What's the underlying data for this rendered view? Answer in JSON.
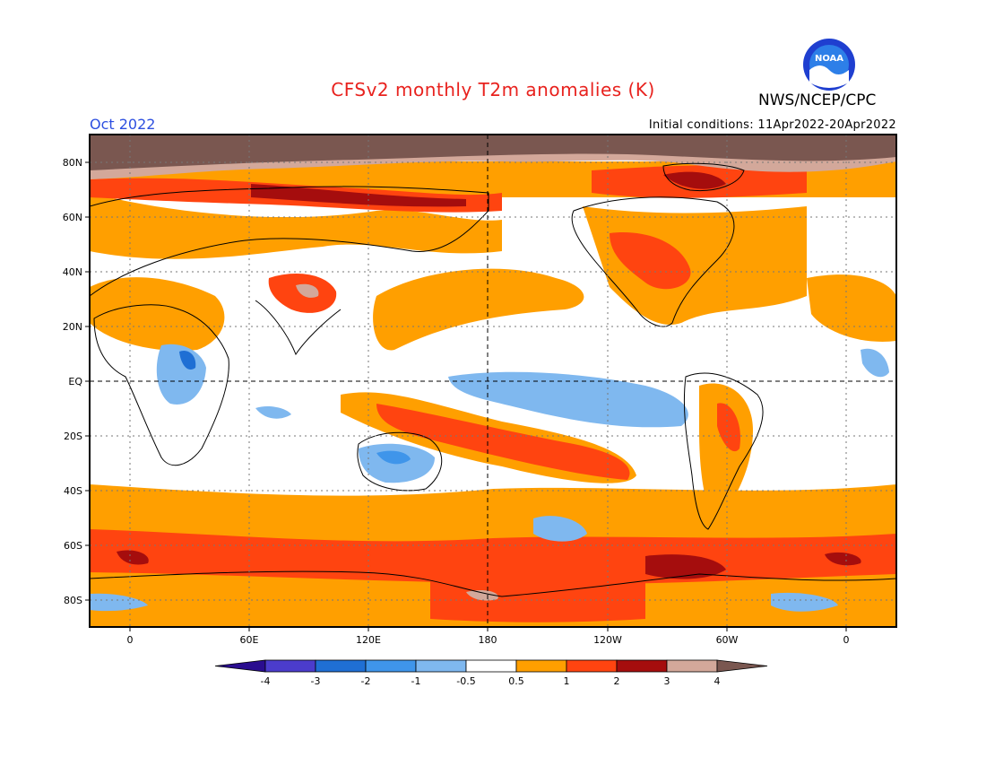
{
  "header": {
    "title": "CFSv2 monthly T2m anomalies (K)",
    "month": "Oct 2022",
    "organization": "NWS/NCEP/CPC",
    "initial_conditions": "Initial conditions: 11Apr2022-20Apr2022",
    "logo_text": "NOAA"
  },
  "map": {
    "lat_labels": [
      "80N",
      "60N",
      "40N",
      "20N",
      "EQ",
      "20S",
      "40S",
      "60S",
      "80S"
    ],
    "lon_labels": [
      "0",
      "60E",
      "120E",
      "180",
      "120W",
      "60W",
      "0"
    ]
  },
  "colorbar": {
    "labels": [
      "-4",
      "-3",
      "-2",
      "-1",
      "-0.5",
      "0.5",
      "1",
      "2",
      "3",
      "4"
    ],
    "colors": [
      "#2a0d8f",
      "#4b3ccc",
      "#1f6fd4",
      "#3f95ea",
      "#7fb8ef",
      "#ffffff",
      "#ff9f00",
      "#ff4410",
      "#a50d0d",
      "#d3a89a",
      "#7a5750"
    ]
  }
}
